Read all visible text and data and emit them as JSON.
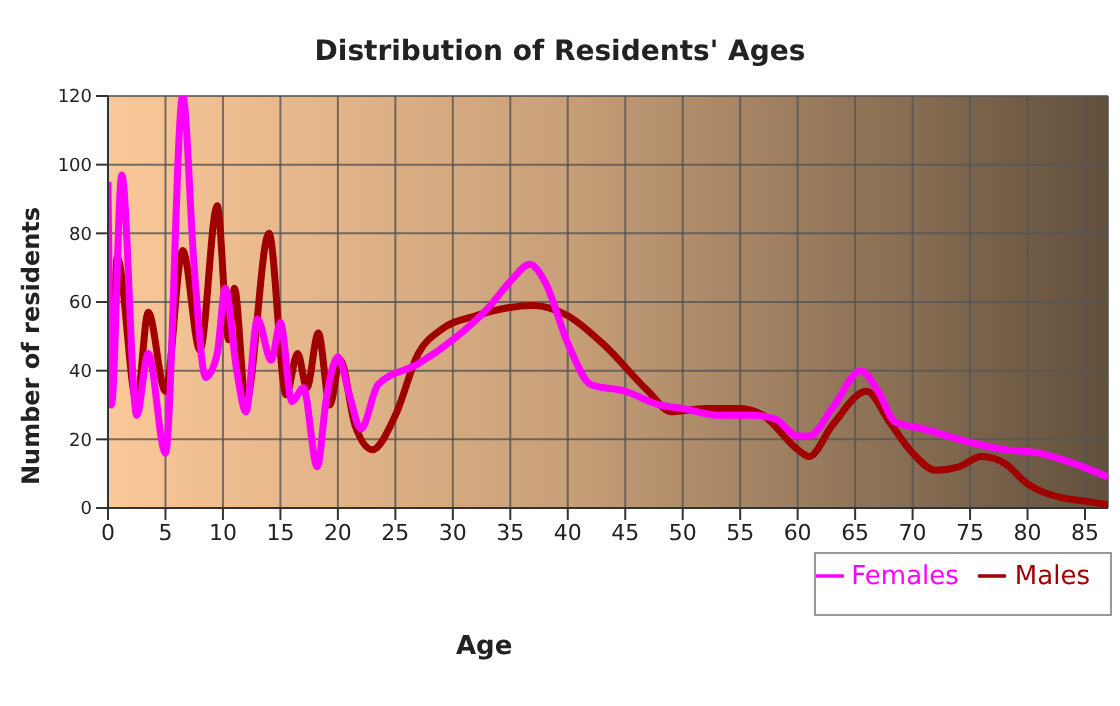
{
  "chart_data": {
    "type": "line",
    "title": "Distribution of Residents' Ages",
    "xlabel": "Age",
    "ylabel": "Number of residents",
    "xlim": [
      0,
      87
    ],
    "xticks": [
      0,
      5,
      10,
      15,
      20,
      25,
      30,
      35,
      40,
      45,
      50,
      55,
      60,
      65,
      70,
      75,
      80,
      85
    ],
    "ylim": [
      0,
      120
    ],
    "yticks": [
      0,
      20,
      40,
      60,
      80,
      100,
      120
    ],
    "grid": true,
    "legend": "bottom right",
    "marker": "none",
    "line_style": "solid",
    "series": [
      {
        "name": "Males",
        "color": "#a00000",
        "x": [
          0,
          0.3,
          0.8,
          2.5,
          3.5,
          5,
          6.5,
          8,
          9.5,
          10.5,
          11,
          12,
          14,
          15.5,
          16.5,
          17.3,
          18.3,
          19.3,
          20.2,
          21.5,
          23,
          25,
          27,
          29,
          32,
          37,
          40,
          43,
          47,
          49,
          52,
          55,
          57,
          60,
          61,
          63,
          66,
          68,
          70,
          72,
          74,
          76,
          78,
          80,
          83,
          85,
          87
        ],
        "values": [
          75,
          34,
          73,
          31,
          57,
          34,
          75,
          46,
          88,
          49,
          64,
          31,
          80,
          33,
          45,
          35,
          51,
          30,
          43,
          24,
          17,
          27,
          45,
          52,
          56,
          59,
          56,
          48,
          34,
          28,
          29,
          29,
          27,
          17,
          15,
          24,
          34,
          25,
          16,
          11,
          12,
          15,
          13,
          7,
          3,
          2,
          1
        ]
      },
      {
        "name": "Females",
        "color": "#ff00ff",
        "x": [
          0,
          0.3,
          1.2,
          2.5,
          3.5,
          5,
          6.5,
          7.5,
          8.5,
          9.5,
          10.2,
          11.2,
          12,
          13,
          14.2,
          15,
          16,
          17,
          18.2,
          19,
          20,
          21,
          22,
          23.5,
          27,
          30,
          33,
          35,
          36.7,
          38,
          40,
          42,
          45,
          48,
          50,
          53,
          56,
          58,
          60,
          61,
          63,
          65.5,
          67,
          68.5,
          71,
          74,
          78,
          81,
          84,
          87
        ],
        "values": [
          95,
          30,
          97,
          27,
          45,
          16,
          120,
          70,
          38,
          45,
          64,
          40,
          28,
          55,
          43,
          54,
          31,
          35,
          12,
          32,
          44,
          33,
          23,
          36,
          42,
          49,
          58,
          66,
          71,
          66,
          48,
          36,
          34,
          30,
          29,
          27,
          27,
          26,
          21,
          21,
          29,
          40,
          34,
          25,
          23,
          20,
          17,
          16,
          13,
          9
        ]
      }
    ]
  }
}
